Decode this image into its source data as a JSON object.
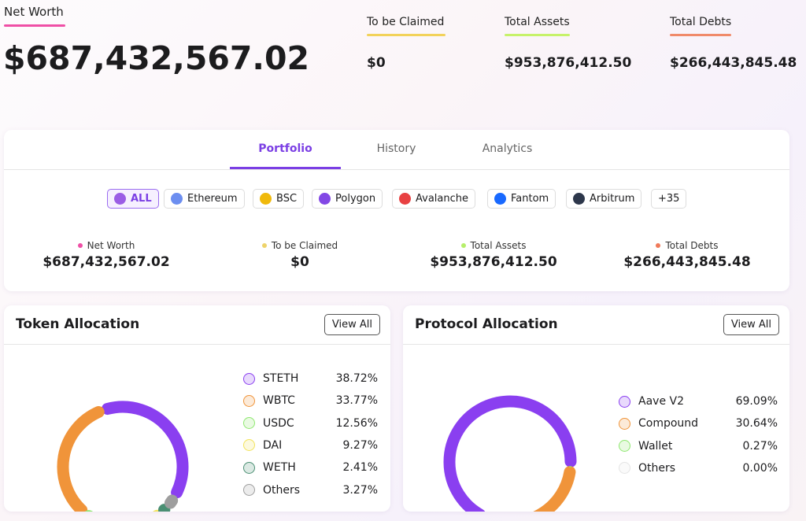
{
  "header": {
    "net_worth": {
      "label": "Net Worth",
      "value": "$687,432,567.02"
    },
    "stats": [
      {
        "label": "To be Claimed",
        "value": "$0",
        "color": "#f2d25a"
      },
      {
        "label": "Total Assets",
        "value": "$953,876,412.50",
        "color": "#c6f26a"
      },
      {
        "label": "Total Debts",
        "value": "$266,443,845.48",
        "color": "#f08a6a"
      }
    ]
  },
  "tabs": [
    "Portfolio",
    "History",
    "Analytics"
  ],
  "chains": [
    "ALL",
    "Ethereum",
    "BSC",
    "Polygon",
    "Avalanche",
    "Fantom",
    "Arbitrum",
    "+35"
  ],
  "summary": [
    {
      "label": "Net Worth",
      "value": "$687,432,567.02",
      "color": "#ef4fa6"
    },
    {
      "label": "To be Claimed",
      "value": "$0",
      "color": "#eed36a"
    },
    {
      "label": "Total Assets",
      "value": "$953,876,412.50",
      "color": "#b6ef6a"
    },
    {
      "label": "Total Debts",
      "value": "$266,443,845.48",
      "color": "#f07a5a"
    }
  ],
  "charts": [
    {
      "type": "donut",
      "title": "Token Allocation",
      "button": "View All",
      "categories": [
        "STETH",
        "WBTC",
        "USDC",
        "DAI",
        "WETH",
        "Others"
      ],
      "values": [
        38.72,
        33.77,
        12.56,
        9.27,
        2.41,
        3.27
      ],
      "value_labels": [
        "38.72%",
        "33.77%",
        "12.56%",
        "9.27%",
        "2.41%",
        "3.27%"
      ],
      "colors": [
        "#8a3ff0",
        "#f0943a",
        "#8fe870",
        "#f2e35a",
        "#4a8f73",
        "#9e9e9e"
      ]
    },
    {
      "type": "donut",
      "title": "Protocol Allocation",
      "button": "View All",
      "categories": [
        "Aave V2",
        "Compound",
        "Wallet",
        "Others"
      ],
      "values": [
        69.09,
        30.64,
        0.27,
        0.0
      ],
      "value_labels": [
        "69.09%",
        "30.64%",
        "0.27%",
        "0.00%"
      ],
      "colors": [
        "#8a3ff0",
        "#f0943a",
        "#8fe870",
        "#e4e4e4"
      ]
    }
  ]
}
